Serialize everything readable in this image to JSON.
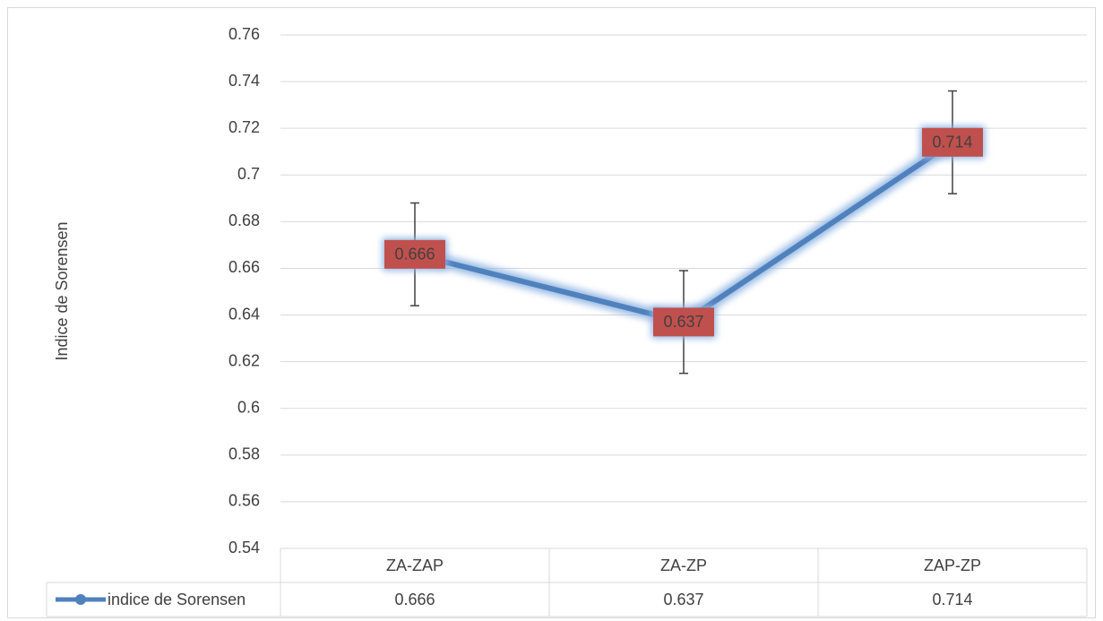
{
  "chart_data": {
    "type": "line",
    "y_label": "Indice de Sorensen",
    "categories": [
      "ZA-ZAP",
      "ZA-ZP",
      "ZAP-ZP"
    ],
    "series": [
      {
        "name": "indice de Sorensen",
        "color": "#4f81bd",
        "label_color": "#c0504d",
        "values": [
          0.666,
          0.637,
          0.714
        ],
        "errors": [
          0.022,
          0.022,
          0.022
        ]
      }
    ],
    "ylim": [
      0.54,
      0.76
    ],
    "yticks": [
      0.54,
      0.56,
      0.58,
      0.6,
      0.62,
      0.64,
      0.66,
      0.68,
      0.7,
      0.72,
      0.74,
      0.76
    ],
    "grid": true,
    "data_table": true
  }
}
